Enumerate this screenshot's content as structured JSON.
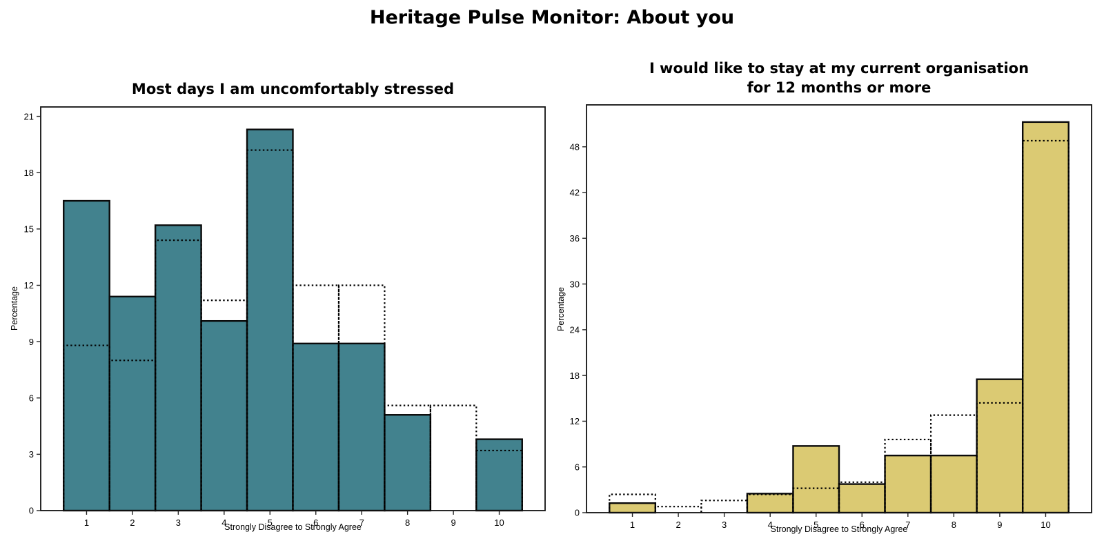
{
  "header": {
    "title": "Heritage Pulse Monitor: About you"
  },
  "chart_data": [
    {
      "type": "bar",
      "id": "stressed",
      "title": "Most days I am uncomfortably stressed",
      "title_lines": [
        "Most days I am uncomfortably stressed"
      ],
      "xlabel": "Strongly Disagree to Strongly Agree",
      "ylabel": "Percentage",
      "categories": [
        "1",
        "2",
        "3",
        "4",
        "5",
        "6",
        "7",
        "8",
        "9",
        "10"
      ],
      "series": [
        {
          "name": "respondents",
          "style": "filled-bar",
          "color": "#42828e",
          "values": [
            16.5,
            11.4,
            15.2,
            10.1,
            20.3,
            8.9,
            8.9,
            5.1,
            0,
            3.8
          ]
        },
        {
          "name": "benchmark",
          "style": "dotted-outline",
          "color": "#000000",
          "values": [
            8.8,
            8.0,
            14.4,
            11.2,
            19.2,
            12.0,
            12.0,
            5.6,
            5.6,
            3.2
          ]
        }
      ],
      "yticks": [
        0,
        3,
        6,
        9,
        12,
        15,
        18,
        21
      ],
      "ylim": [
        0,
        21.5
      ],
      "xlim": [
        0,
        11
      ],
      "grid": false,
      "legend": "none"
    },
    {
      "type": "bar",
      "id": "stay",
      "title": "I would like to stay at my current organisation for 12 months or more",
      "title_lines": [
        "I would like to stay at my current organisation",
        "for 12 months or more"
      ],
      "xlabel": "Strongly Disagree to Strongly Agree",
      "ylabel": "Percentage",
      "categories": [
        "1",
        "2",
        "3",
        "4",
        "5",
        "6",
        "7",
        "8",
        "9",
        "10"
      ],
      "series": [
        {
          "name": "respondents",
          "style": "filled-bar",
          "color": "#dbca73",
          "values": [
            1.25,
            0,
            0,
            2.5,
            8.75,
            3.75,
            7.5,
            7.5,
            17.5,
            51.25
          ]
        },
        {
          "name": "benchmark",
          "style": "dotted-outline",
          "color": "#000000",
          "values": [
            2.4,
            0.8,
            1.6,
            2.4,
            3.2,
            4.0,
            9.6,
            12.8,
            14.4,
            48.8
          ]
        }
      ],
      "yticks": [
        0,
        6,
        12,
        18,
        24,
        30,
        36,
        42,
        48
      ],
      "ylim": [
        0,
        53.5
      ],
      "xlim": [
        0,
        11
      ],
      "grid": false,
      "legend": "none"
    }
  ]
}
